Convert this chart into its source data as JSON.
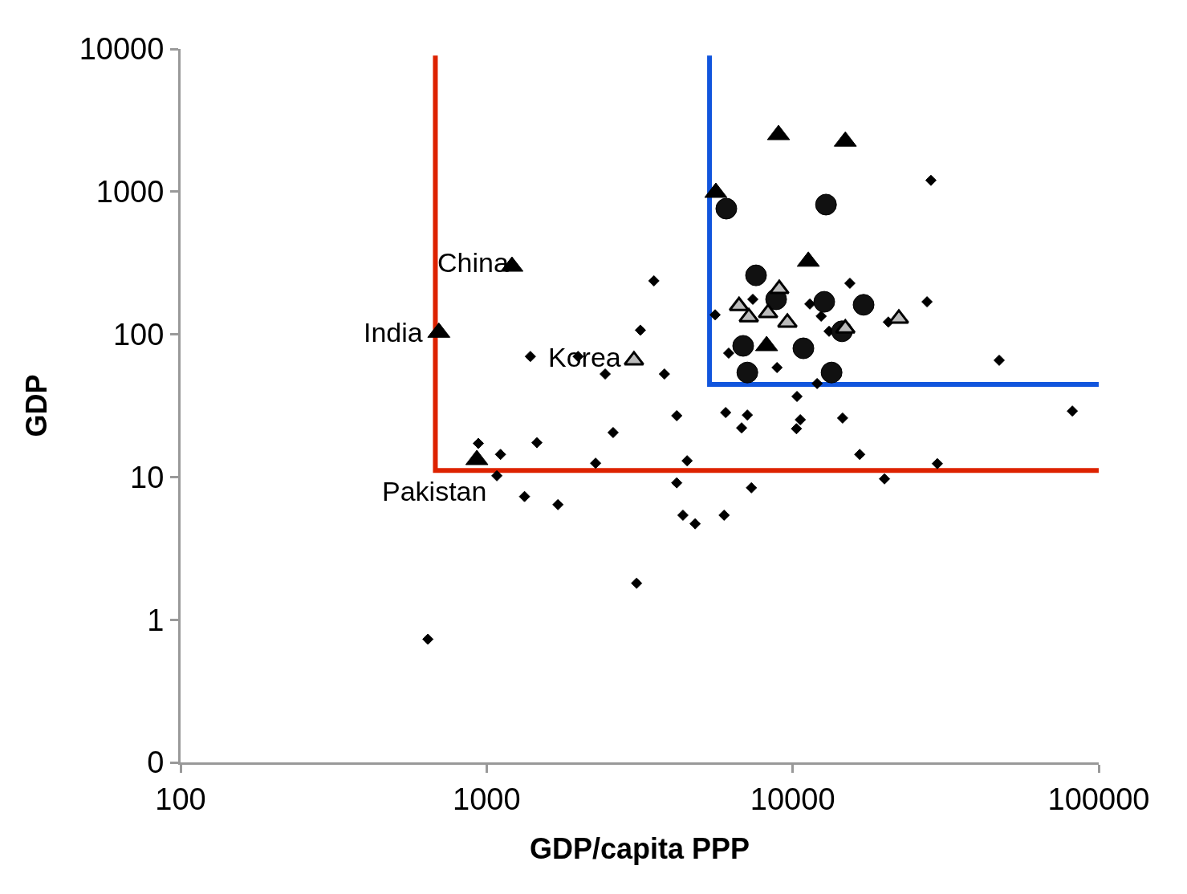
{
  "chart_data": {
    "type": "scatter",
    "xlabel": "GDP/capita PPP",
    "ylabel": "GDP",
    "log": "xy",
    "grid": false,
    "xlim": [
      100,
      100000
    ],
    "xticks": [
      100,
      1000,
      10000,
      100000
    ],
    "ylim": [
      0.1,
      10000
    ],
    "yticks": [
      {
        "value": 0.1,
        "label": "0"
      },
      1,
      10,
      100,
      1000,
      10000
    ],
    "series": [
      {
        "type": "line",
        "color": "#dd2200",
        "marker": "none",
        "x": [
          680,
          680,
          100000
        ],
        "values": [
          9000,
          11.1,
          11.1
        ]
      },
      {
        "type": "line",
        "color": "#1155dd",
        "marker": "none",
        "x": [
          5350,
          5350,
          100000
        ],
        "values": [
          9000,
          44.6,
          44.6
        ]
      },
      {
        "color": "#000000",
        "marker": "diamond",
        "x": [
          28300,
          3520,
          5580,
          7410,
          11380,
          15380,
          12390,
          13150,
          20540,
          27480,
          47300,
          3180,
          1390,
          1990,
          2440,
          3810,
          6180,
          8890,
          12020,
          10330,
          6040,
          7110,
          4180,
          10590,
          14560,
          6810,
          10290,
          82000,
          2590,
          1460,
          940,
          1110,
          16560,
          2270,
          4520,
          29700,
          1080,
          19950,
          4180,
          7330,
          1330,
          1710,
          4380,
          5970,
          4800,
          3090,
          643
        ],
        "values": [
          1200,
          237,
          137,
          176,
          163,
          228,
          134,
          105,
          122,
          169,
          65.8,
          107,
          70,
          70,
          52.7,
          52.7,
          73.8,
          58.5,
          45.2,
          36.7,
          28.3,
          27.2,
          26.9,
          25.2,
          25.9,
          22.1,
          21.8,
          29,
          20.5,
          17.4,
          17.2,
          14.4,
          14.4,
          12.5,
          13,
          12.4,
          10.2,
          9.7,
          9.1,
          8.4,
          7.3,
          6.4,
          5.4,
          5.4,
          4.7,
          1.8,
          0.73
        ]
      },
      {
        "color": "#111111",
        "marker": "circle",
        "x": [
          6070,
          12850,
          7590,
          8830,
          12680,
          17050,
          14490,
          6890,
          10840,
          7110,
          13400
        ],
        "values": [
          760,
          811,
          259,
          176,
          169,
          161,
          105,
          83,
          79.8,
          54,
          54
        ]
      },
      {
        "color": "#000000",
        "marker": "triangle",
        "x": [
          8990,
          14860,
          5610,
          11250,
          1210,
          698,
          8220,
          929
        ],
        "values": [
          2500,
          2250,
          985,
          324,
          299,
          103,
          83,
          13.2
        ]
      },
      {
        "color": "#bbbbbb",
        "marker": "triangle",
        "x": [
          9040,
          6680,
          7190,
          8310,
          9610,
          14860,
          22230,
          3030
        ],
        "values": [
          208,
          158,
          132,
          141,
          121,
          110,
          129,
          65.8
        ]
      }
    ],
    "annotations": [
      {
        "text": "China",
        "x": 1210,
        "y": 299
      },
      {
        "text": "India",
        "x": 698,
        "y": 103
      },
      {
        "text": "Korea",
        "x": 3030,
        "y": 65.8
      },
      {
        "text": "Pakistan",
        "x": 929,
        "y": 13.2
      }
    ]
  }
}
